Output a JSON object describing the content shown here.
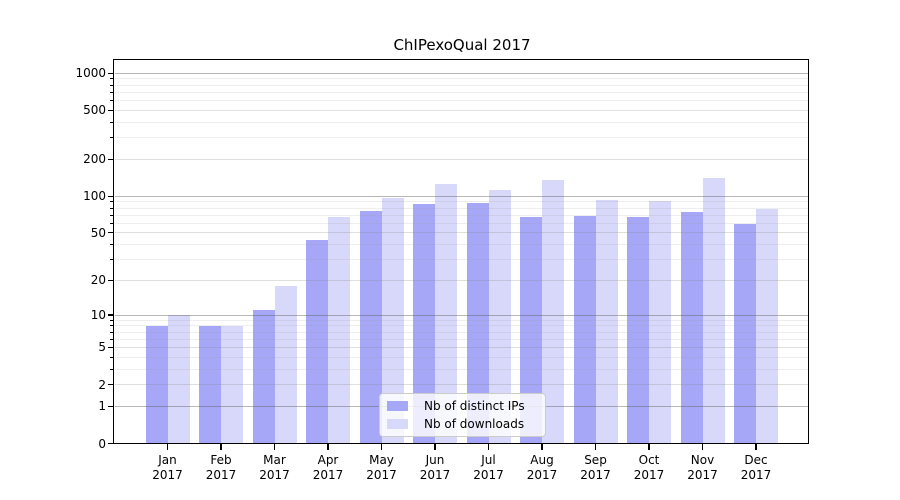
{
  "chart_data": {
    "type": "bar",
    "title": "ChIPexoQual 2017",
    "categories": [
      "Jan",
      "Feb",
      "Mar",
      "Apr",
      "May",
      "Jun",
      "Jul",
      "Aug",
      "Sep",
      "Oct",
      "Nov",
      "Dec"
    ],
    "category_year": "2017",
    "series": [
      {
        "name": "Nb of distinct IPs",
        "color": "#a7a7f7",
        "values": [
          8,
          8,
          11,
          44,
          75,
          86,
          88,
          68,
          69,
          68,
          74,
          59
        ]
      },
      {
        "name": "Nb of downloads",
        "color": "#d8d8fa",
        "values": [
          10,
          8,
          18,
          68,
          97,
          126,
          113,
          136,
          94,
          91,
          140,
          78
        ]
      }
    ],
    "yscale": "log1p",
    "yticks": [
      0,
      1,
      2,
      5,
      10,
      20,
      50,
      100,
      200,
      500,
      1000
    ],
    "minor_yticks": [
      3,
      4,
      6,
      7,
      8,
      9,
      30,
      40,
      60,
      70,
      80,
      90,
      300,
      400,
      600,
      700,
      800,
      900
    ],
    "dark_grid_values": [
      1,
      10,
      100,
      1000
    ],
    "grid": "both",
    "legend_position": "lower center",
    "grid_colors": {
      "major": "rgba(95,95,95,0.45)",
      "mid": "rgba(130,130,130,0.26)",
      "minor": "rgba(150,150,150,0.16)"
    },
    "spine_color": "#000000",
    "background": "#ffffff"
  }
}
